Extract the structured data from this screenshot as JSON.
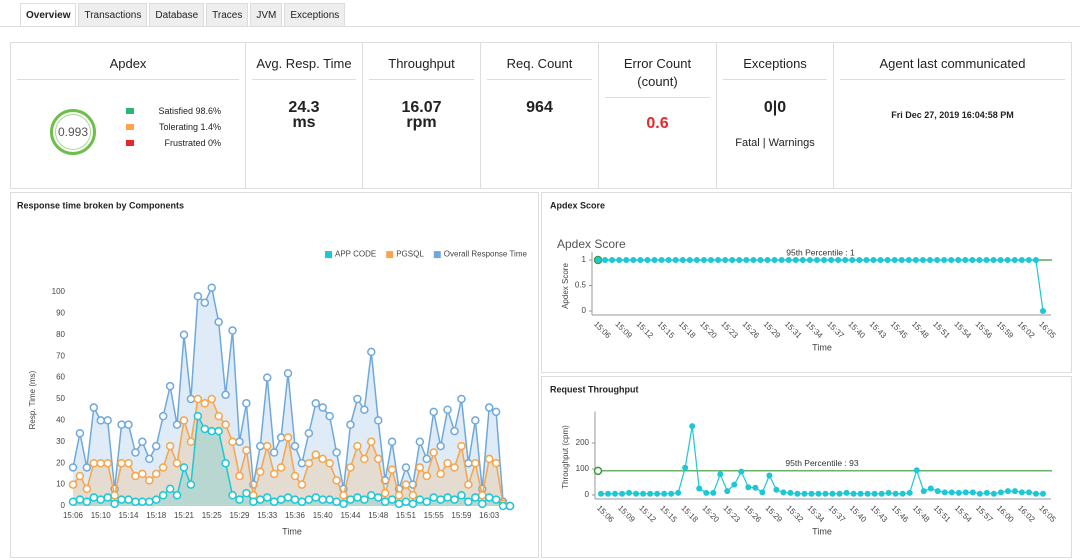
{
  "tabs": [
    "Overview",
    "Transactions",
    "Database",
    "Traces",
    "JVM",
    "Exceptions"
  ],
  "apdex": {
    "title": "Apdex",
    "score": 0.993,
    "legend": [
      {
        "label": "Satisfied 98.6%",
        "color": "#2bb673"
      },
      {
        "label": "Tolerating 1.4%",
        "color": "#f7a44a"
      },
      {
        "label": "Frustrated 0%",
        "color": "#e8262c"
      }
    ]
  },
  "metrics": [
    {
      "title": "Avg. Resp. Time",
      "value": 24.3,
      "unit": "ms"
    },
    {
      "title": "Throughput",
      "value": 16.07,
      "unit": "rpm"
    },
    {
      "title": "Req. Count",
      "value": 964
    },
    {
      "title": "Error Count",
      "subtitle": "(count)",
      "value": 0.6
    },
    {
      "title": "Exceptions",
      "value": "0|0",
      "note": "Fatal | Warnings"
    },
    {
      "title": "Agent last communicated",
      "value": "Fri Dec 27, 2019 16:04:58 PM"
    }
  ],
  "chart_data": [
    {
      "type": "area",
      "panel_title": "Response time broken by Components",
      "y_label": "Resp. Time (ms)",
      "x_label": "Time",
      "legend": "top-right",
      "grid": false,
      "categories": [
        "15:06",
        null,
        null,
        null,
        "15:10",
        null,
        null,
        null,
        "15:14",
        null,
        null,
        null,
        "15:18",
        null,
        null,
        null,
        "15:21",
        null,
        null,
        null,
        "15:25",
        null,
        null,
        null,
        "15:29",
        null,
        null,
        null,
        "15:33",
        null,
        null,
        null,
        "15:36",
        null,
        null,
        null,
        "15:40",
        null,
        null,
        null,
        "15:44",
        null,
        null,
        null,
        "15:48",
        null,
        null,
        null,
        "15:51",
        null,
        null,
        null,
        "15:55",
        null,
        null,
        null,
        "15:59",
        null,
        null,
        null,
        "16:03",
        null,
        null,
        null
      ],
      "series": [
        {
          "name": "APP CODE",
          "color": "#1cc7d6",
          "values": [
            2,
            3,
            2,
            4,
            3,
            4,
            1,
            3,
            3,
            2,
            2,
            2,
            3,
            5,
            8,
            5,
            18,
            10,
            42,
            36,
            35,
            35,
            20,
            5,
            3,
            6,
            2,
            3,
            4,
            2,
            3,
            4,
            3,
            2,
            3,
            4,
            3,
            3,
            2,
            1,
            3,
            4,
            3,
            5,
            4,
            2,
            3,
            1,
            2,
            1,
            3,
            2,
            4,
            3,
            4,
            3,
            5,
            2,
            4,
            1,
            4,
            3,
            0,
            0
          ]
        },
        {
          "name": "PGSQL",
          "color": "#f7a44a",
          "values": [
            10,
            14,
            8,
            20,
            20,
            20,
            5,
            20,
            20,
            14,
            15,
            12,
            15,
            18,
            28,
            20,
            40,
            30,
            50,
            48,
            50,
            42,
            38,
            30,
            14,
            26,
            5,
            16,
            28,
            15,
            18,
            32,
            14,
            10,
            20,
            24,
            22,
            20,
            12,
            5,
            18,
            28,
            22,
            30,
            22,
            6,
            17,
            5,
            10,
            5,
            18,
            14,
            25,
            15,
            20,
            18,
            28,
            10,
            20,
            5,
            22,
            20,
            1,
            0
          ]
        },
        {
          "name": "Overall Response Time",
          "color": "#6fa8dc",
          "values": [
            18,
            34,
            18,
            46,
            40,
            40,
            8,
            38,
            38,
            25,
            30,
            22,
            28,
            42,
            56,
            38,
            80,
            50,
            98,
            95,
            102,
            86,
            52,
            82,
            30,
            48,
            10,
            28,
            60,
            25,
            32,
            62,
            28,
            20,
            34,
            48,
            46,
            42,
            25,
            8,
            38,
            50,
            45,
            72,
            40,
            12,
            30,
            8,
            18,
            10,
            30,
            22,
            44,
            28,
            45,
            35,
            50,
            20,
            40,
            8,
            46,
            44,
            2,
            0
          ]
        }
      ],
      "ylim": [
        0,
        110
      ],
      "yticks": [
        0,
        10,
        20,
        30,
        40,
        50,
        60,
        70,
        80,
        90,
        100
      ]
    },
    {
      "type": "line",
      "panel_title": "Apdex Score",
      "title": "Apdex Score",
      "y_label": "Apdex Score",
      "x_label": "Time",
      "grid": false,
      "categories": [
        "15:06",
        null,
        null,
        "15:09",
        null,
        null,
        "15:12",
        null,
        null,
        "15:15",
        null,
        null,
        "15:18",
        null,
        null,
        "15:20",
        null,
        null,
        "15:23",
        null,
        null,
        "15:26",
        null,
        null,
        "15:29",
        null,
        null,
        "15:31",
        null,
        null,
        "15:34",
        null,
        null,
        "15:37",
        null,
        null,
        "15:40",
        null,
        null,
        "15:43",
        null,
        null,
        "15:45",
        null,
        null,
        "15:48",
        null,
        null,
        "15:51",
        null,
        null,
        "15:54",
        null,
        null,
        "15:56",
        null,
        null,
        "15:59",
        null,
        null,
        "16:02",
        null,
        null,
        "16:05"
      ],
      "series": [
        {
          "color": "#1cc7d6",
          "values": [
            1,
            1,
            1,
            1,
            1,
            1,
            1,
            1,
            1,
            1,
            1,
            1,
            1,
            1,
            1,
            1,
            1,
            1,
            1,
            1,
            1,
            1,
            1,
            1,
            1,
            1,
            1,
            1,
            1,
            1,
            1,
            1,
            1,
            1,
            1,
            1,
            1,
            1,
            1,
            1,
            1,
            1,
            1,
            1,
            1,
            1,
            1,
            1,
            1,
            1,
            1,
            1,
            1,
            1,
            1,
            1,
            1,
            1,
            1,
            1,
            1,
            1,
            1,
            0
          ]
        }
      ],
      "percentile": {
        "value": 1,
        "label": "95th Percentile : 1",
        "color": "#3a9a3a"
      },
      "ylim": [
        0,
        1
      ],
      "yticks": [
        0,
        0.5,
        1
      ]
    },
    {
      "type": "line",
      "panel_title": "Request Throughput",
      "y_label": "Throughput (cpm)",
      "x_label": "Time",
      "grid": false,
      "categories": [
        "15:06",
        null,
        null,
        "15:09",
        null,
        null,
        "15:12",
        null,
        null,
        "15:15",
        null,
        null,
        "15:18",
        null,
        null,
        "15:20",
        null,
        null,
        "15:23",
        null,
        null,
        "15:26",
        null,
        null,
        "15:29",
        null,
        null,
        "15:32",
        null,
        null,
        "15:34",
        null,
        null,
        "15:37",
        null,
        null,
        "15:40",
        null,
        null,
        "15:43",
        null,
        null,
        "15:46",
        null,
        null,
        "15:48",
        null,
        null,
        "15:51",
        null,
        null,
        "15:54",
        null,
        null,
        "15:57",
        null,
        null,
        "16:00",
        null,
        null,
        "16:02",
        null,
        null,
        "16:05"
      ],
      "series": [
        {
          "color": "#1cc7d6",
          "values": [
            5,
            5,
            5,
            5,
            8,
            5,
            5,
            5,
            5,
            5,
            5,
            8,
            105,
            265,
            25,
            8,
            8,
            80,
            15,
            40,
            90,
            30,
            28,
            10,
            75,
            20,
            10,
            8,
            5,
            5,
            5,
            5,
            5,
            5,
            5,
            8,
            5,
            5,
            5,
            5,
            5,
            8,
            5,
            5,
            8,
            95,
            15,
            25,
            15,
            10,
            10,
            8,
            10,
            10,
            5,
            8,
            5,
            10,
            15,
            15,
            10,
            10,
            5,
            5
          ]
        }
      ],
      "percentile": {
        "value": 93,
        "label": "95th Percentile : 93",
        "color": "#3a9a3a"
      },
      "ylim": [
        0,
        290
      ],
      "yticks": [
        0,
        100,
        200
      ]
    }
  ]
}
